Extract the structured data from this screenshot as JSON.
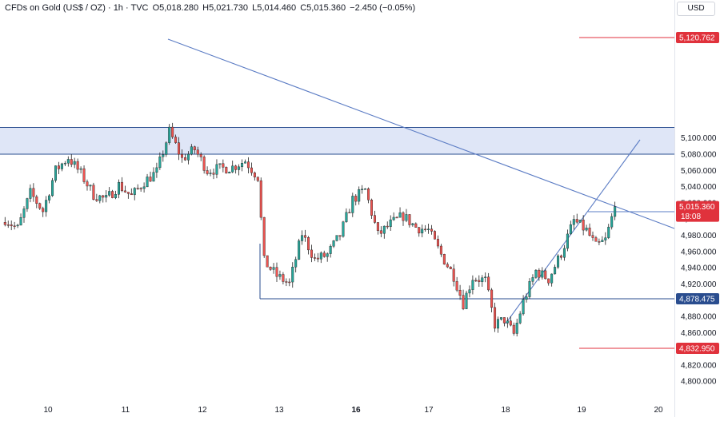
{
  "header": {
    "symbol": "CFDs on Gold (US$ / OZ) · 1h · TVC",
    "open": "O5,018.280",
    "high": "H5,021.730",
    "low": "L5,014.460",
    "close": "C5,015.360",
    "change": "−2.450 (−0.05%)"
  },
  "currency": "USD",
  "colors": {
    "up": "#26a69a",
    "down": "#ef5350",
    "line": "#5b7cc4",
    "zone": "#dfe6f7",
    "level_blue": "#2a4d8f",
    "level_red": "#e0323c"
  },
  "chart_data": {
    "type": "candlestick",
    "title": "CFDs on Gold (US$ / OZ) · 1h · TVC",
    "ylim": [
      4780,
      5145
    ],
    "y_ticks": [
      4800,
      4820,
      4840,
      4860,
      4880,
      4900,
      4920,
      4940,
      4960,
      4980,
      5000,
      5020,
      5040,
      5060,
      5080,
      5100
    ],
    "y_tick_labels": [
      "4,800.000",
      "4,820.000",
      "4,840.000",
      "4,860.000",
      "4,880.000",
      "4,900.000",
      "4,920.000",
      "4,940.000",
      "4,960.000",
      "4,980.000",
      "5,000.000",
      "5,020.000",
      "5,040.000",
      "5,060.000",
      "5,080.000",
      "5,100.000"
    ],
    "x_ticks": [
      {
        "label": "10",
        "bold": false
      },
      {
        "label": "11",
        "bold": false
      },
      {
        "label": "12",
        "bold": false
      },
      {
        "label": "13",
        "bold": false
      },
      {
        "label": "16",
        "bold": true
      },
      {
        "label": "17",
        "bold": false
      },
      {
        "label": "18",
        "bold": false
      },
      {
        "label": "19",
        "bold": false
      },
      {
        "label": "20",
        "bold": false
      }
    ],
    "grid": false,
    "resistance_zone": {
      "from": 5080,
      "to": 5113
    },
    "price_labels": [
      {
        "value": 5120.762,
        "text": "5,120.762",
        "color": "red"
      },
      {
        "value": 5015.36,
        "text": "5,015.360",
        "sub": "18:08",
        "color": "red_current"
      },
      {
        "value": 4878.475,
        "text": "4,878.475",
        "color": "blue"
      },
      {
        "value": 4832.95,
        "text": "4,832.950",
        "color": "red"
      }
    ],
    "current_price": 5015.36,
    "countdown": "18:08",
    "anchors": [
      {
        "i": 0,
        "v": 5000
      },
      {
        "i": 4,
        "v": 4988
      },
      {
        "i": 8,
        "v": 5032
      },
      {
        "i": 12,
        "v": 5010
      },
      {
        "i": 16,
        "v": 5060
      },
      {
        "i": 20,
        "v": 5076
      },
      {
        "i": 24,
        "v": 5056
      },
      {
        "i": 28,
        "v": 5030
      },
      {
        "i": 32,
        "v": 5024
      },
      {
        "i": 36,
        "v": 5042
      },
      {
        "i": 40,
        "v": 5028
      },
      {
        "i": 44,
        "v": 5046
      },
      {
        "i": 48,
        "v": 5058
      },
      {
        "i": 52,
        "v": 5108
      },
      {
        "i": 56,
        "v": 5074
      },
      {
        "i": 60,
        "v": 5086
      },
      {
        "i": 64,
        "v": 5060
      },
      {
        "i": 68,
        "v": 5062
      },
      {
        "i": 72,
        "v": 5064
      },
      {
        "i": 76,
        "v": 5072
      },
      {
        "i": 80,
        "v": 5052
      },
      {
        "i": 82,
        "v": 4948
      },
      {
        "i": 86,
        "v": 4930
      },
      {
        "i": 90,
        "v": 4920
      },
      {
        "i": 94,
        "v": 4982
      },
      {
        "i": 98,
        "v": 4950
      },
      {
        "i": 102,
        "v": 4956
      },
      {
        "i": 106,
        "v": 4980
      },
      {
        "i": 110,
        "v": 5024
      },
      {
        "i": 114,
        "v": 5036
      },
      {
        "i": 118,
        "v": 4980
      },
      {
        "i": 122,
        "v": 4994
      },
      {
        "i": 126,
        "v": 5004
      },
      {
        "i": 130,
        "v": 4990
      },
      {
        "i": 134,
        "v": 4986
      },
      {
        "i": 138,
        "v": 4956
      },
      {
        "i": 142,
        "v": 4930
      },
      {
        "i": 145,
        "v": 4896
      },
      {
        "i": 148,
        "v": 4928
      },
      {
        "i": 152,
        "v": 4924
      },
      {
        "i": 155,
        "v": 4870
      },
      {
        "i": 158,
        "v": 4876
      },
      {
        "i": 161,
        "v": 4858
      },
      {
        "i": 164,
        "v": 4898
      },
      {
        "i": 168,
        "v": 4936
      },
      {
        "i": 172,
        "v": 4926
      },
      {
        "i": 176,
        "v": 4958
      },
      {
        "i": 180,
        "v": 4998
      },
      {
        "i": 184,
        "v": 4986
      },
      {
        "i": 187,
        "v": 4966
      },
      {
        "i": 190,
        "v": 4974
      },
      {
        "i": 193,
        "v": 5015
      }
    ]
  }
}
